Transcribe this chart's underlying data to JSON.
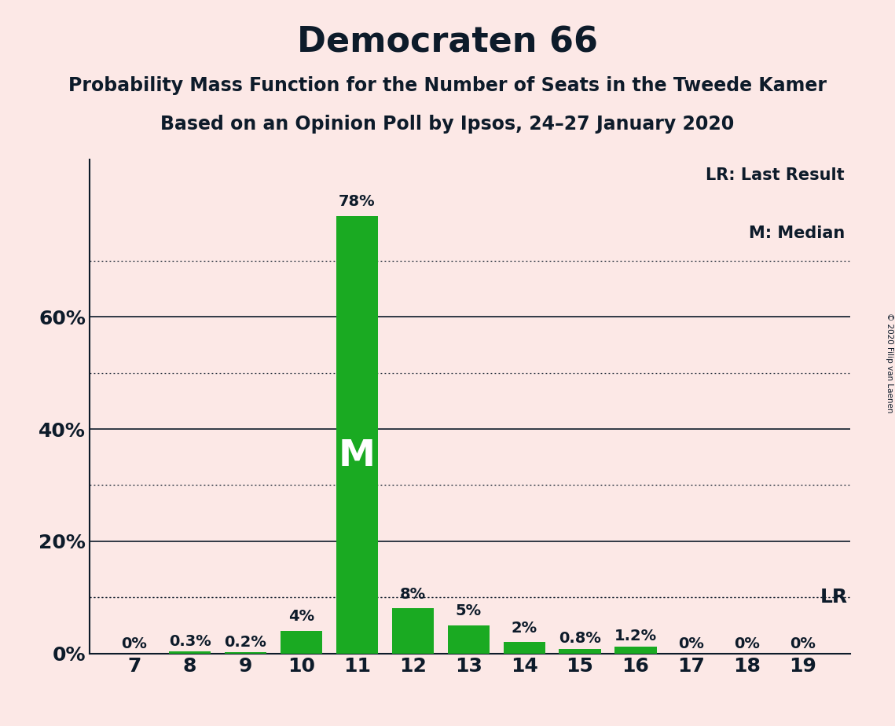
{
  "title": "Democraten 66",
  "subtitle1": "Probability Mass Function for the Number of Seats in the Tweede Kamer",
  "subtitle2": "Based on an Opinion Poll by Ipsos, 24–27 January 2020",
  "copyright": "© 2020 Filip van Laenen",
  "seats": [
    7,
    8,
    9,
    10,
    11,
    12,
    13,
    14,
    15,
    16,
    17,
    18,
    19
  ],
  "probabilities": [
    0.0,
    0.3,
    0.2,
    4.0,
    78.0,
    8.0,
    5.0,
    2.0,
    0.8,
    1.2,
    0.0,
    0.0,
    0.0
  ],
  "bar_labels": [
    "0%",
    "0.3%",
    "0.2%",
    "4%",
    "78%",
    "8%",
    "5%",
    "2%",
    "0.8%",
    "1.2%",
    "0%",
    "0%",
    "0%"
  ],
  "bar_color": "#1aaa22",
  "median_seat": 11,
  "median_label": "M",
  "lr_pct": 10.0,
  "background_color": "#fce8e6",
  "solid_lines": [
    20,
    40,
    60
  ],
  "dotted_lines": [
    10,
    30,
    50,
    70
  ],
  "yticks": [
    0,
    20,
    40,
    60
  ],
  "ytick_labels": [
    "0%",
    "20%",
    "40%",
    "60%"
  ],
  "ymax": 88,
  "legend_lr": "LR: Last Result",
  "legend_m": "M: Median",
  "title_fontsize": 32,
  "subtitle_fontsize": 17,
  "label_fontsize": 14,
  "axis_fontsize": 18,
  "text_color": "#0d1b2a"
}
